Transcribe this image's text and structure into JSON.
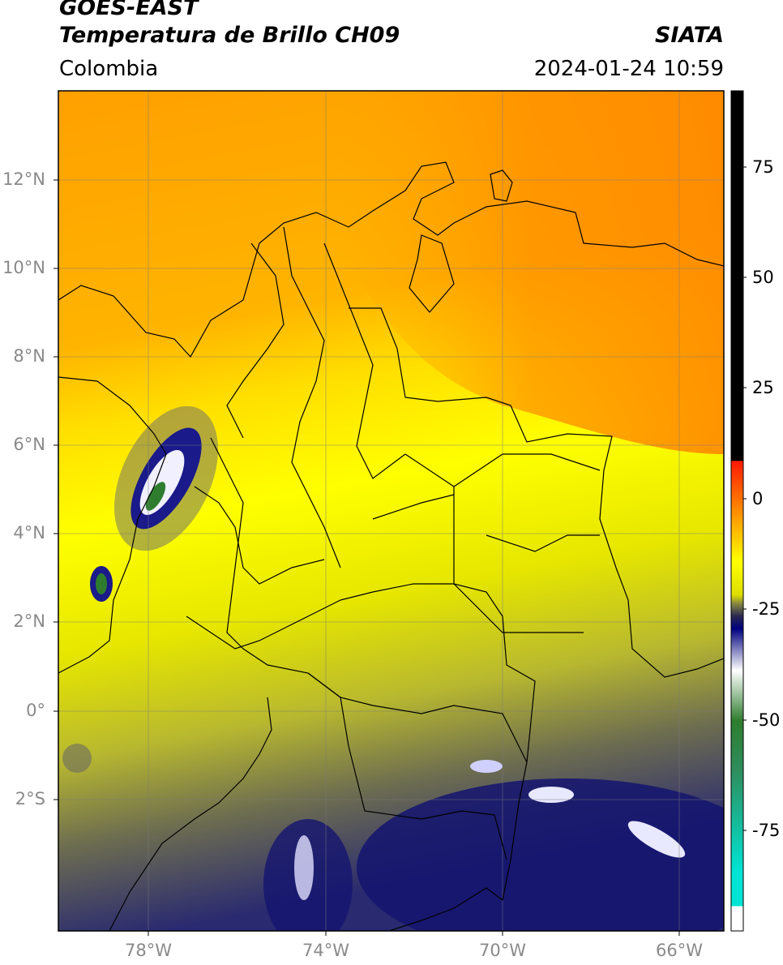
{
  "header": {
    "title_line1": "GOES-EAST",
    "title_line2": "Temperatura de Brillo CH09",
    "source": "SIATA",
    "region": "Colombia",
    "datetime": "2024-01-24 10:59"
  },
  "map": {
    "latitude_labels": [
      "12°N",
      "10°N",
      "8°N",
      "6°N",
      "4°N",
      "2°N",
      "0°",
      "2°S"
    ],
    "longitude_labels": [
      "78°W",
      "74°W",
      "70°W",
      "66°W"
    ],
    "grid": true
  },
  "colorbar": {
    "tick_labels": [
      "75",
      "50",
      "25",
      "0",
      "-25",
      "-50",
      "-75"
    ],
    "colors": {
      "warm_black": "#000000",
      "red": "#ff1a00",
      "orange": "#ff8c00",
      "yellow": "#ffff00",
      "olive": "#8a8a40",
      "navy": "#000080",
      "white": "#ffffff",
      "green": "#2e7d2e",
      "cyan": "#00e5d4"
    }
  }
}
